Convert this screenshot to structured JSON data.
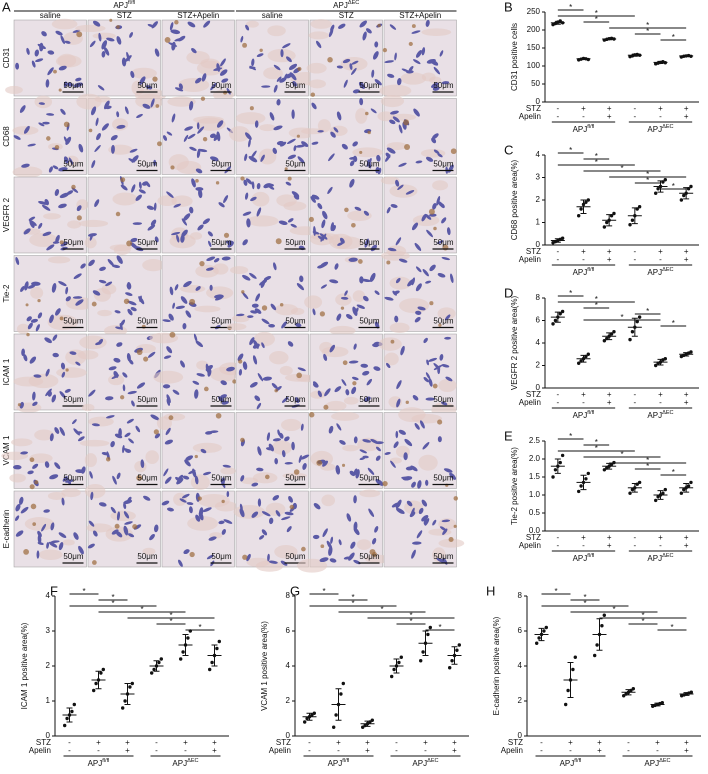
{
  "panel_a": {
    "panel_label": "A",
    "groups": [
      {
        "text": "APJ",
        "sup": "fl/fl"
      },
      {
        "text": "APJ",
        "sup": "ΔEC"
      }
    ],
    "columns": [
      "saline",
      "STZ",
      "STZ+Apelin",
      "saline",
      "STZ",
      "STZ+Apelin"
    ],
    "rows": [
      "CD31",
      "CD68",
      "VEGFR 2",
      "Tie-2",
      "ICAM 1",
      "VCAM 1",
      "E-cadherin"
    ],
    "scale_bar": "50μm"
  },
  "chart_data": [
    {
      "type": "dot",
      "panel_label": "B",
      "ylabel": "CD31 positive cells",
      "ylim": [
        0,
        250
      ],
      "yticks": [
        0,
        50,
        100,
        150,
        200,
        250
      ],
      "row_labels": [
        "STZ",
        "Apelin"
      ],
      "stz": [
        "-",
        "+",
        "+",
        "-",
        "+",
        "+"
      ],
      "apelin": [
        "-",
        "-",
        "+",
        "-",
        "-",
        "+"
      ],
      "group_labels": [
        {
          "text": "APJ",
          "sup": "fl/fl"
        },
        {
          "text": "APJ",
          "sup": "ΔEC"
        }
      ],
      "sig_label": "*",
      "sig": [
        [
          0,
          1
        ],
        [
          0,
          3
        ],
        [
          1,
          2
        ],
        [
          2,
          5
        ],
        [
          3,
          4
        ],
        [
          4,
          5
        ]
      ],
      "values": [
        220,
        120,
        175,
        130,
        110,
        128
      ],
      "errors": [
        4,
        2,
        2,
        3,
        3,
        2
      ],
      "points": [
        [
          215,
          218,
          222,
          225,
          220
        ],
        [
          117,
          119,
          121,
          120,
          118
        ],
        [
          172,
          174,
          176,
          177,
          175
        ],
        [
          126,
          128,
          131,
          132,
          130
        ],
        [
          106,
          108,
          110,
          112,
          109
        ],
        [
          125,
          127,
          128,
          129,
          127
        ]
      ]
    },
    {
      "type": "dot",
      "panel_label": "C",
      "ylabel": "CD68 positive area(%)",
      "ylim": [
        0,
        4
      ],
      "yticks": [
        0,
        1,
        2,
        3,
        4
      ],
      "row_labels": [
        "STZ",
        "Apelin"
      ],
      "stz": [
        "-",
        "+",
        "+",
        "-",
        "+",
        "+"
      ],
      "apelin": [
        "-",
        "-",
        "+",
        "-",
        "-",
        "+"
      ],
      "group_labels": [
        {
          "text": "APJ",
          "sup": "fl/fl"
        },
        {
          "text": "APJ",
          "sup": "ΔEC"
        }
      ],
      "sig_label": "*",
      "sig": [
        [
          0,
          1
        ],
        [
          1,
          2
        ],
        [
          0,
          3
        ],
        [
          1,
          4
        ],
        [
          2,
          5
        ],
        [
          3,
          4
        ],
        [
          4,
          5
        ]
      ],
      "values": [
        0.2,
        1.7,
        1.1,
        1.3,
        2.6,
        2.3
      ],
      "errors": [
        0.08,
        0.3,
        0.25,
        0.35,
        0.25,
        0.25
      ],
      "points": [
        [
          0.1,
          0.15,
          0.2,
          0.25,
          0.3
        ],
        [
          1.3,
          1.6,
          1.8,
          1.9,
          2.0
        ],
        [
          0.8,
          1.0,
          1.1,
          1.3,
          1.4
        ],
        [
          0.9,
          1.1,
          1.3,
          1.6,
          1.7
        ],
        [
          2.3,
          2.5,
          2.6,
          2.8,
          2.9
        ],
        [
          2.0,
          2.2,
          2.3,
          2.5,
          2.6
        ]
      ]
    },
    {
      "type": "dot",
      "panel_label": "D",
      "ylabel": "VEGFR 2 positive area(%)",
      "ylim": [
        0,
        8
      ],
      "yticks": [
        0,
        2,
        4,
        6,
        8
      ],
      "row_labels": [
        "STZ",
        "Apelin"
      ],
      "stz": [
        "-",
        "+",
        "+",
        "-",
        "+",
        "+"
      ],
      "apelin": [
        "-",
        "-",
        "+",
        "-",
        "-",
        "+"
      ],
      "group_labels": [
        {
          "text": "APJ",
          "sup": "fl/fl"
        },
        {
          "text": "APJ",
          "sup": "ΔEC"
        }
      ],
      "sig_label": "*",
      "sig": [
        [
          0,
          1
        ],
        [
          0,
          3
        ],
        [
          1,
          2
        ],
        [
          3,
          4
        ],
        [
          1,
          4
        ],
        [
          4,
          5
        ]
      ],
      "values": [
        6.3,
        2.6,
        4.6,
        5.4,
        2.3,
        3.0
      ],
      "errors": [
        0.45,
        0.3,
        0.3,
        0.8,
        0.25,
        0.15
      ],
      "points": [
        [
          5.7,
          6.0,
          6.3,
          6.6,
          6.8
        ],
        [
          2.2,
          2.4,
          2.6,
          2.8,
          3.0
        ],
        [
          4.2,
          4.4,
          4.6,
          4.8,
          5.0
        ],
        [
          4.3,
          5.0,
          5.4,
          5.9,
          6.3
        ],
        [
          2.0,
          2.2,
          2.3,
          2.5,
          2.6
        ],
        [
          2.8,
          2.9,
          3.0,
          3.1,
          3.2
        ]
      ]
    },
    {
      "type": "dot",
      "panel_label": "E",
      "ylabel": "Tie-2 positive area(%)",
      "ylim": [
        0,
        2.5
      ],
      "yticks": [
        {
          "value": 0,
          "label": "0.0"
        },
        0.5,
        {
          "value": 1,
          "label": "1.0"
        },
        1.5,
        {
          "value": 2,
          "label": "2.0"
        },
        2.5
      ],
      "row_labels": [
        "STZ",
        "Apelin"
      ],
      "stz": [
        "-",
        "+",
        "+",
        "-",
        "+",
        "+"
      ],
      "apelin": [
        "-",
        "-",
        "+",
        "-",
        "-",
        "+"
      ],
      "group_labels": [
        {
          "text": "APJ",
          "sup": "fl/fl"
        },
        {
          "text": "APJ",
          "sup": "ΔEC"
        }
      ],
      "sig_label": "*",
      "sig": [
        [
          0,
          1
        ],
        [
          1,
          2
        ],
        [
          0,
          3
        ],
        [
          1,
          4
        ],
        [
          2,
          5
        ],
        [
          3,
          4
        ],
        [
          4,
          5
        ]
      ],
      "values": [
        1.8,
        1.35,
        1.8,
        1.2,
        1.0,
        1.2
      ],
      "errors": [
        0.2,
        0.2,
        0.08,
        0.12,
        0.12,
        0.12
      ],
      "points": [
        [
          1.5,
          1.7,
          1.8,
          1.9,
          2.1
        ],
        [
          1.1,
          1.25,
          1.35,
          1.45,
          1.6
        ],
        [
          1.7,
          1.75,
          1.8,
          1.85,
          1.9
        ],
        [
          1.05,
          1.15,
          1.2,
          1.3,
          1.35
        ],
        [
          0.85,
          0.95,
          1.0,
          1.05,
          1.15
        ],
        [
          1.05,
          1.15,
          1.2,
          1.25,
          1.35
        ]
      ]
    },
    {
      "type": "dot",
      "panel_label": "F",
      "ylabel": "ICAM 1 positive area(%)",
      "ylim": [
        0,
        4
      ],
      "yticks": [
        0,
        1,
        2,
        3,
        4
      ],
      "row_labels": [
        "STZ",
        "Apelin"
      ],
      "stz": [
        "-",
        "+",
        "+",
        "-",
        "+",
        "+"
      ],
      "apelin": [
        "-",
        "-",
        "+",
        "-",
        "-",
        "+"
      ],
      "group_labels": [
        {
          "text": "APJ",
          "sup": "fl/fl"
        },
        {
          "text": "APJ",
          "sup": "ΔEC"
        }
      ],
      "sig_label": "*",
      "sig": [
        [
          0,
          1
        ],
        [
          1,
          2
        ],
        [
          0,
          3
        ],
        [
          1,
          4
        ],
        [
          2,
          5
        ],
        [
          3,
          4
        ],
        [
          4,
          5
        ]
      ],
      "values": [
        0.6,
        1.6,
        1.2,
        2.0,
        2.6,
        2.3
      ],
      "errors": [
        0.2,
        0.25,
        0.3,
        0.15,
        0.3,
        0.3
      ],
      "points": [
        [
          0.3,
          0.5,
          0.6,
          0.7,
          0.9
        ],
        [
          1.3,
          1.5,
          1.6,
          1.8,
          1.9
        ],
        [
          0.8,
          1.0,
          1.2,
          1.4,
          1.5
        ],
        [
          1.8,
          1.9,
          2.0,
          2.1,
          2.2
        ],
        [
          2.2,
          2.4,
          2.6,
          2.8,
          3.0
        ],
        [
          1.9,
          2.1,
          2.3,
          2.5,
          2.7
        ]
      ]
    },
    {
      "type": "dot",
      "panel_label": "G",
      "ylabel": "VCAM 1 positive area(%)",
      "ylim": [
        0,
        8
      ],
      "yticks": [
        0,
        2,
        4,
        6,
        8
      ],
      "row_labels": [
        "STZ",
        "Apelin"
      ],
      "stz": [
        "-",
        "+",
        "+",
        "-",
        "+",
        "+"
      ],
      "apelin": [
        "-",
        "-",
        "+",
        "-",
        "-",
        "+"
      ],
      "group_labels": [
        {
          "text": "APJ",
          "sup": "fl/fl"
        },
        {
          "text": "APJ",
          "sup": "ΔEC"
        }
      ],
      "sig_label": "*",
      "sig": [
        [
          0,
          1
        ],
        [
          1,
          2
        ],
        [
          0,
          3
        ],
        [
          1,
          4
        ],
        [
          2,
          5
        ],
        [
          3,
          4
        ],
        [
          4,
          5
        ]
      ],
      "values": [
        1.1,
        1.8,
        0.7,
        4.0,
        5.3,
        4.6
      ],
      "errors": [
        0.2,
        0.9,
        0.15,
        0.4,
        0.7,
        0.5
      ],
      "points": [
        [
          0.8,
          1.0,
          1.1,
          1.2,
          1.3
        ],
        [
          0.5,
          1.2,
          1.8,
          2.4,
          3.0
        ],
        [
          0.5,
          0.6,
          0.7,
          0.8,
          0.9
        ],
        [
          3.4,
          3.8,
          4.0,
          4.2,
          4.5
        ],
        [
          4.3,
          4.8,
          5.3,
          5.8,
          6.2
        ],
        [
          3.9,
          4.3,
          4.6,
          4.9,
          5.2
        ]
      ]
    },
    {
      "type": "dot",
      "panel_label": "H",
      "ylabel": "E-cadherin positive area(%)",
      "ylim": [
        0,
        8
      ],
      "yticks": [
        0,
        2,
        4,
        6,
        8
      ],
      "row_labels": [
        "STZ",
        "Apelin"
      ],
      "stz": [
        "-",
        "+",
        "+",
        "-",
        "+",
        "+"
      ],
      "apelin": [
        "-",
        "-",
        "+",
        "-",
        "-",
        "+"
      ],
      "group_labels": [
        {
          "text": "APJ",
          "sup": "fl/fl"
        },
        {
          "text": "APJ",
          "sup": "ΔEC"
        }
      ],
      "sig_label": "*",
      "sig": [
        [
          0,
          1
        ],
        [
          1,
          2
        ],
        [
          0,
          3
        ],
        [
          1,
          4
        ],
        [
          2,
          5
        ],
        [
          3,
          4
        ],
        [
          4,
          5
        ]
      ],
      "values": [
        5.8,
        3.2,
        5.8,
        2.5,
        1.8,
        2.4
      ],
      "errors": [
        0.35,
        1.0,
        0.9,
        0.15,
        0.08,
        0.08
      ],
      "points": [
        [
          5.3,
          5.6,
          5.8,
          6.0,
          6.2
        ],
        [
          1.8,
          2.6,
          3.2,
          3.8,
          4.5
        ],
        [
          4.6,
          5.2,
          5.8,
          6.3,
          6.9
        ],
        [
          2.3,
          2.4,
          2.5,
          2.6,
          2.7
        ],
        [
          1.7,
          1.75,
          1.8,
          1.85,
          1.9
        ],
        [
          2.3,
          2.35,
          2.4,
          2.45,
          2.5
        ]
      ]
    }
  ]
}
